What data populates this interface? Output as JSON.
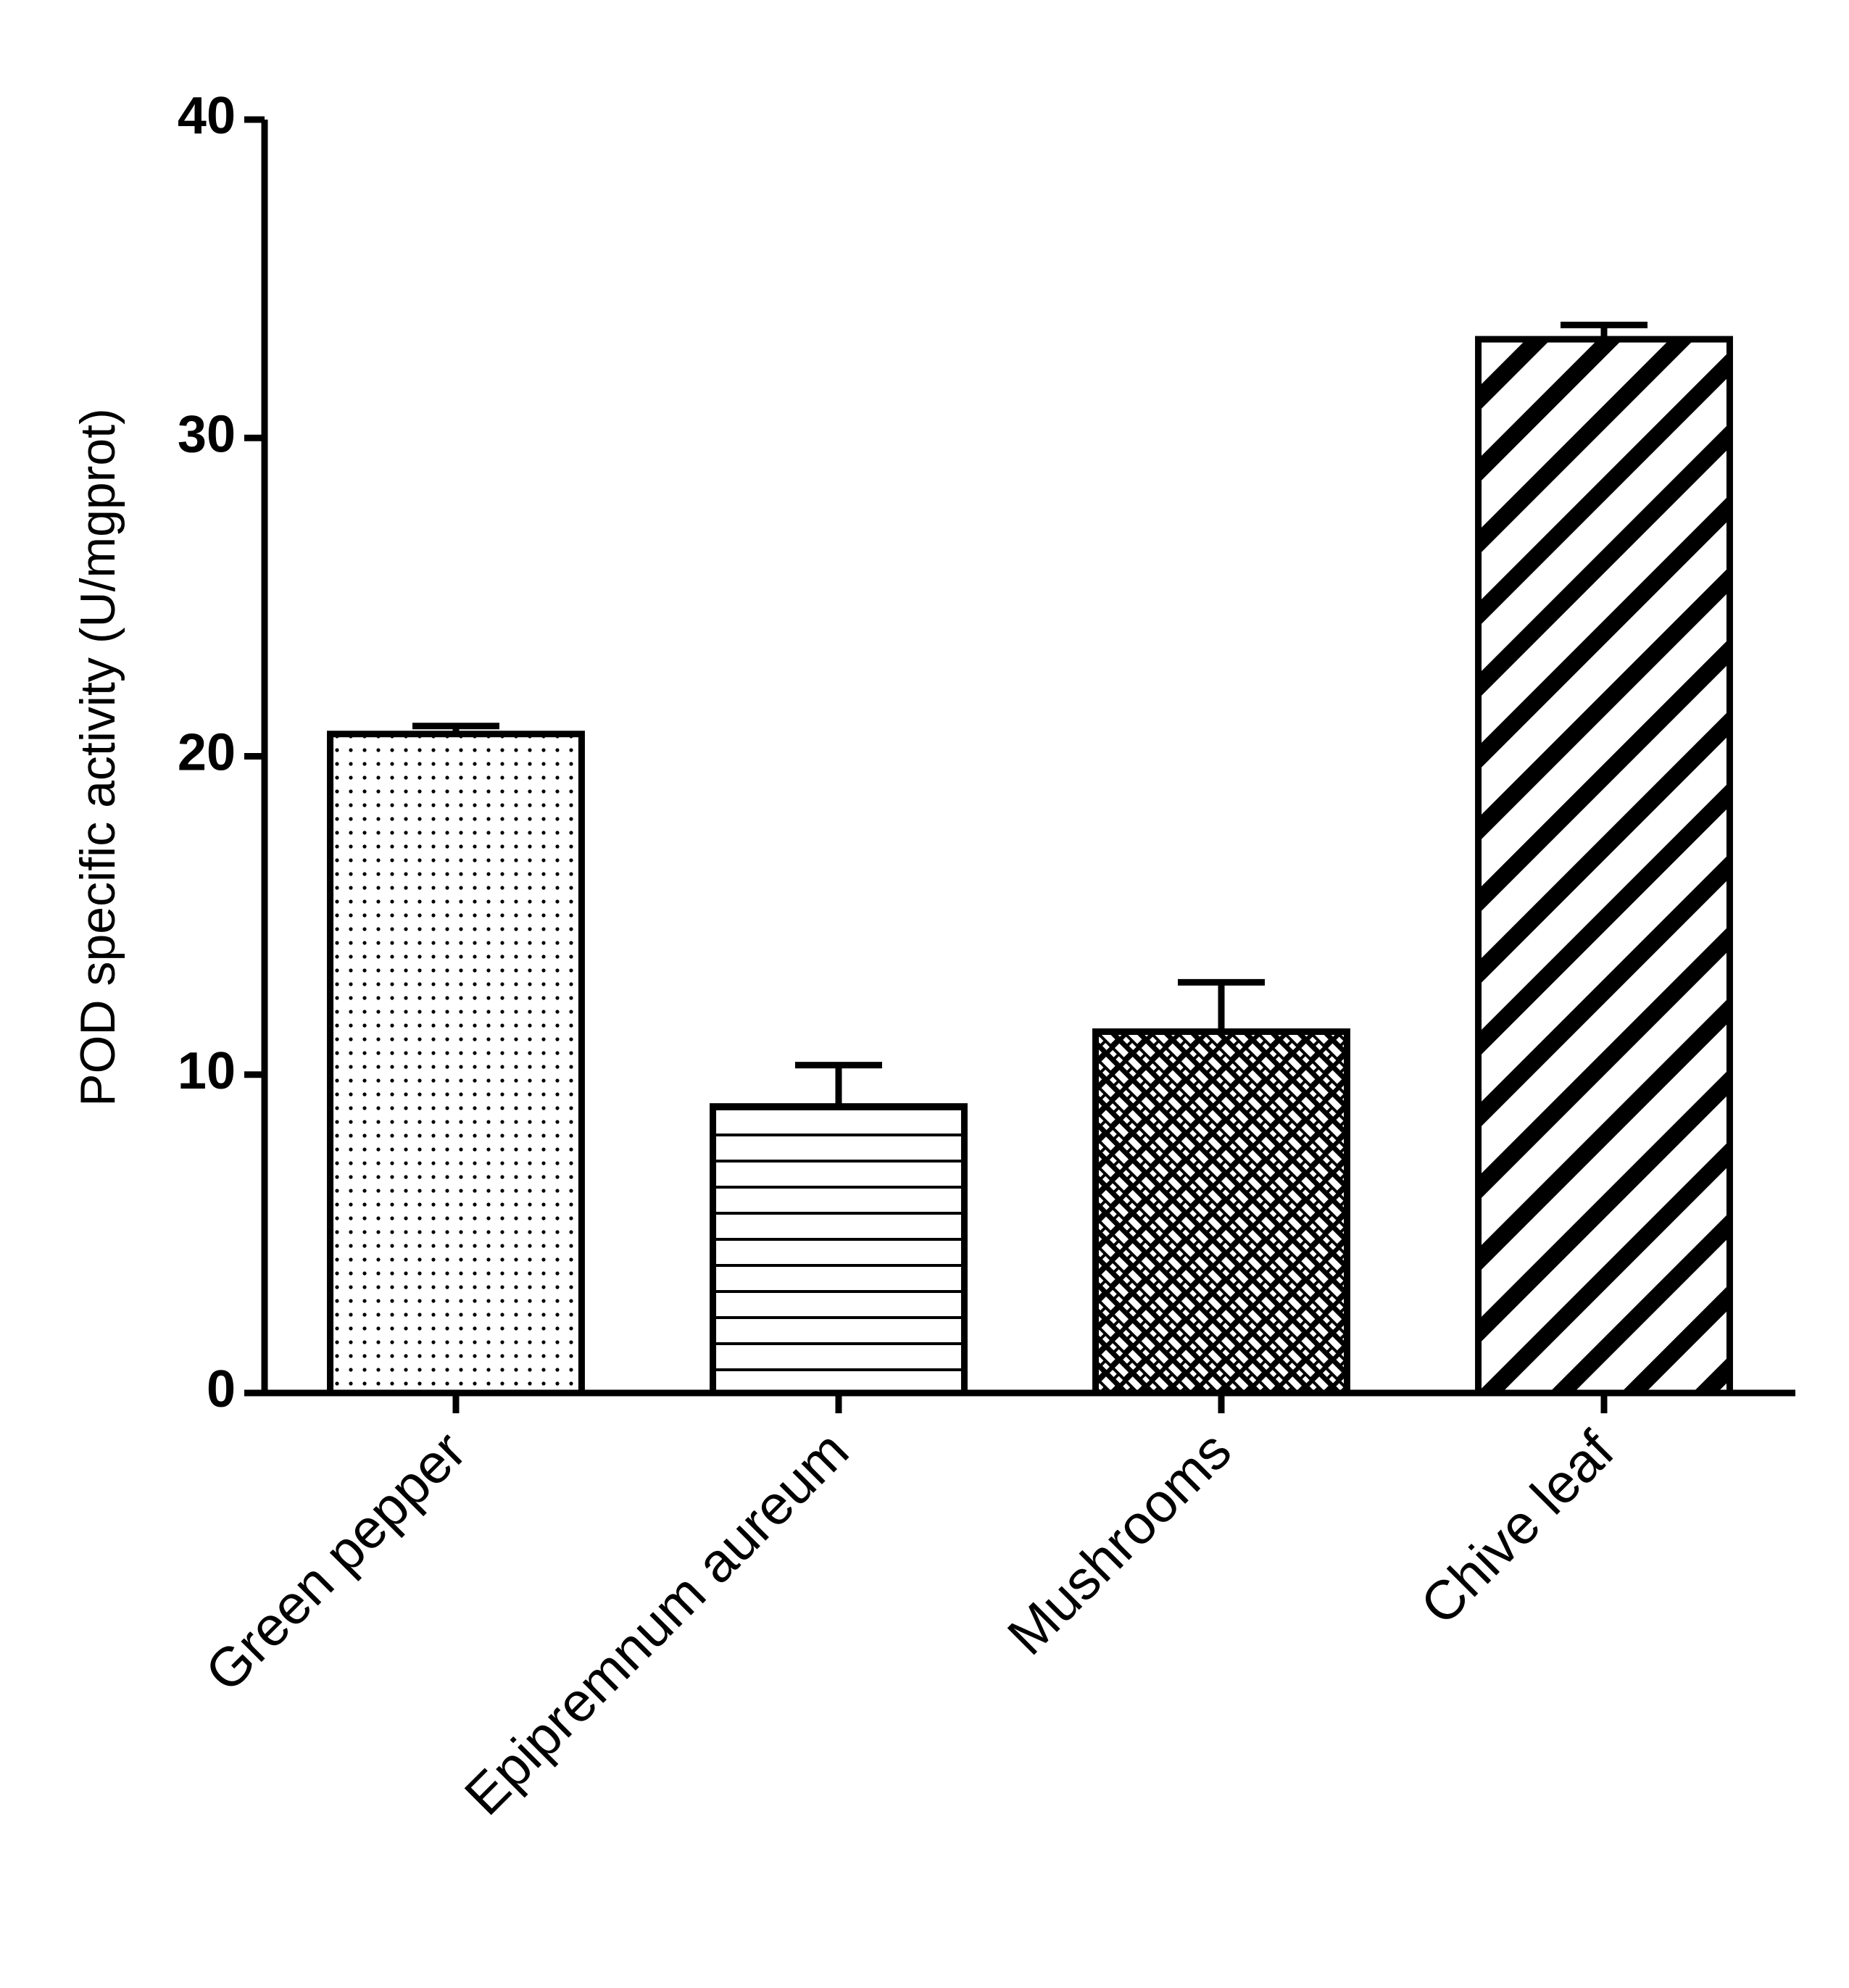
{
  "chart_data": {
    "type": "bar",
    "ylabel": "POD specific activity (U/mgprot)",
    "categories": [
      "Green pepper",
      "Epipremnum aureum",
      "Mushrooms",
      "Chive leaf"
    ],
    "values": [
      20.7,
      9.0,
      11.35,
      33.1
    ],
    "errors": [
      0.25,
      1.3,
      1.55,
      0.45
    ],
    "patterns": [
      "dots",
      "horizontal",
      "crosshatch",
      "diagonal"
    ],
    "color": "#000000",
    "ylim": [
      0,
      40
    ],
    "yticks": [
      0,
      10,
      20,
      30,
      40
    ],
    "grid": false
  }
}
